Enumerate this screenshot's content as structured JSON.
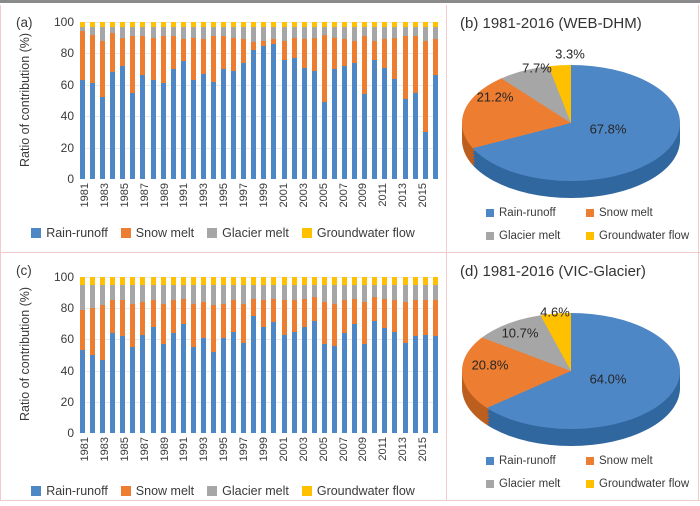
{
  "figure": {
    "ylabel": "Ratio of contribution (%)"
  },
  "palette": {
    "rain_runoff": "#4e87c6",
    "snow_melt": "#ED7D31",
    "glacier_melt": "#A6A6A6",
    "groundwater_flow": "#FFC000",
    "rain_runoff_dark": "#31679f",
    "snow_melt_dark": "#bc5e1e",
    "glacier_melt_dark": "#828282",
    "groundwater_flow_dark": "#c49200"
  },
  "chart_data": [
    {
      "id": "a",
      "type": "bar",
      "stacked": true,
      "panel_label": "(a)",
      "ylabel": "Ratio of contribution (%)",
      "ylim": [
        0,
        100
      ],
      "yticks": [
        0,
        20,
        40,
        60,
        80,
        100
      ],
      "grid": true,
      "legend_position": "bottom",
      "categories": [
        1981,
        1982,
        1983,
        1984,
        1985,
        1986,
        1987,
        1988,
        1989,
        1990,
        1991,
        1992,
        1993,
        1994,
        1995,
        1996,
        1997,
        1998,
        1999,
        2000,
        2001,
        2002,
        2003,
        2004,
        2005,
        2006,
        2007,
        2008,
        2009,
        2010,
        2011,
        2012,
        2013,
        2014,
        2015,
        2016
      ],
      "xtick_labels": [
        "1981",
        "1983",
        "1985",
        "1987",
        "1989",
        "1991",
        "1993",
        "1995",
        "1997",
        "1999",
        "2001",
        "2003",
        "2005",
        "2007",
        "2009",
        "2011",
        "2013",
        "2015"
      ],
      "series": [
        {
          "name": "Rain-runoff",
          "color": "#4e87c6",
          "values": [
            63,
            61,
            52,
            68,
            72,
            55,
            66,
            63,
            61,
            70,
            75,
            63,
            67,
            62,
            70,
            69,
            74,
            82,
            85,
            86,
            76,
            77,
            71,
            69,
            49,
            70,
            72,
            74,
            54,
            76,
            71,
            64,
            51,
            55,
            30,
            66
          ]
        },
        {
          "name": "Snow melt",
          "color": "#ED7D31",
          "values": [
            31,
            31,
            36,
            25,
            18,
            36,
            25,
            27,
            30,
            21,
            14,
            27,
            22,
            29,
            21,
            21,
            15,
            5,
            3,
            3,
            12,
            13,
            18,
            21,
            43,
            20,
            17,
            14,
            37,
            12,
            18,
            26,
            40,
            36,
            58,
            23
          ]
        },
        {
          "name": "Glacier melt",
          "color": "#A6A6A6",
          "values": [
            3,
            5,
            9,
            4,
            7,
            6,
            6,
            7,
            6,
            6,
            8,
            7,
            8,
            6,
            6,
            7,
            8,
            10,
            9,
            8,
            9,
            7,
            8,
            7,
            5,
            7,
            8,
            9,
            6,
            9,
            8,
            7,
            6,
            6,
            9,
            8
          ]
        },
        {
          "name": "Groundwater flow",
          "color": "#FFC000",
          "values": [
            3,
            3,
            3,
            3,
            3,
            3,
            3,
            3,
            3,
            3,
            3,
            3,
            3,
            3,
            3,
            3,
            3,
            3,
            3,
            3,
            3,
            3,
            3,
            3,
            3,
            3,
            3,
            3,
            3,
            3,
            3,
            3,
            3,
            3,
            3,
            3
          ]
        }
      ]
    },
    {
      "id": "b",
      "type": "pie",
      "title": "(b) 1981-2016 (WEB-DHM)",
      "legend_position": "bottom",
      "slices": [
        {
          "name": "Rain-runoff",
          "value": 67.8,
          "label": "67.8%",
          "color": "#4e87c6",
          "dark": "#31679f"
        },
        {
          "name": "Snow melt",
          "value": 21.2,
          "label": "21.2%",
          "color": "#ED7D31",
          "dark": "#bc5e1e"
        },
        {
          "name": "Glacier melt",
          "value": 7.7,
          "label": "7.7%",
          "color": "#A6A6A6",
          "dark": "#828282"
        },
        {
          "name": "Groundwater flow",
          "value": 3.3,
          "label": "3.3%",
          "color": "#FFC000",
          "dark": "#c49200"
        }
      ]
    },
    {
      "id": "c",
      "type": "bar",
      "stacked": true,
      "panel_label": "(c)",
      "ylabel": "Ratio of contribution (%)",
      "ylim": [
        0,
        100
      ],
      "yticks": [
        0,
        20,
        40,
        60,
        80,
        100
      ],
      "grid": true,
      "legend_position": "bottom",
      "categories": [
        1981,
        1982,
        1983,
        1984,
        1985,
        1986,
        1987,
        1988,
        1989,
        1990,
        1991,
        1992,
        1993,
        1994,
        1995,
        1996,
        1997,
        1998,
        1999,
        2000,
        2001,
        2002,
        2003,
        2004,
        2005,
        2006,
        2007,
        2008,
        2009,
        2010,
        2011,
        2012,
        2013,
        2014,
        2015,
        2016
      ],
      "xtick_labels": [
        "1981",
        "1983",
        "1985",
        "1987",
        "1989",
        "1991",
        "1993",
        "1995",
        "1997",
        "1999",
        "2001",
        "2003",
        "2005",
        "2007",
        "2009",
        "2011",
        "2013",
        "2015"
      ],
      "series": [
        {
          "name": "Rain-runoff",
          "color": "#4e87c6",
          "values": [
            53,
            50,
            47,
            64,
            62,
            55,
            63,
            68,
            57,
            64,
            70,
            55,
            61,
            52,
            61,
            65,
            58,
            75,
            68,
            71,
            63,
            65,
            68,
            72,
            57,
            56,
            64,
            70,
            57,
            72,
            67,
            65,
            58,
            62,
            63,
            62
          ]
        },
        {
          "name": "Snow melt",
          "color": "#ED7D31",
          "values": [
            26,
            30,
            35,
            21,
            23,
            28,
            21,
            17,
            26,
            21,
            16,
            28,
            23,
            30,
            22,
            20,
            25,
            11,
            17,
            15,
            22,
            20,
            18,
            15,
            27,
            27,
            21,
            16,
            27,
            15,
            19,
            20,
            26,
            23,
            22,
            23
          ]
        },
        {
          "name": "Glacier melt",
          "color": "#A6A6A6",
          "values": [
            16,
            15,
            13,
            10,
            10,
            12,
            11,
            10,
            12,
            10,
            9,
            12,
            11,
            13,
            12,
            10,
            12,
            9,
            10,
            9,
            10,
            10,
            9,
            8,
            11,
            12,
            10,
            9,
            11,
            8,
            9,
            10,
            11,
            10,
            10,
            10
          ]
        },
        {
          "name": "Groundwater flow",
          "color": "#FFC000",
          "values": [
            5,
            5,
            5,
            5,
            5,
            5,
            5,
            5,
            5,
            5,
            5,
            5,
            5,
            5,
            5,
            5,
            5,
            5,
            5,
            5,
            5,
            5,
            5,
            5,
            5,
            5,
            5,
            5,
            5,
            5,
            5,
            5,
            5,
            5,
            5,
            5
          ]
        }
      ]
    },
    {
      "id": "d",
      "type": "pie",
      "title": "(d) 1981-2016 (VIC-Glacier)",
      "legend_position": "bottom",
      "slices": [
        {
          "name": "Rain-runoff",
          "value": 64.0,
          "label": "64.0%",
          "color": "#4e87c6",
          "dark": "#31679f"
        },
        {
          "name": "Snow melt",
          "value": 20.8,
          "label": "20.8%",
          "color": "#ED7D31",
          "dark": "#bc5e1e"
        },
        {
          "name": "Glacier melt",
          "value": 10.7,
          "label": "10.7%",
          "color": "#A6A6A6",
          "dark": "#828282"
        },
        {
          "name": "Groundwater flow",
          "value": 4.6,
          "label": "4.6%",
          "color": "#FFC000",
          "dark": "#c49200"
        }
      ]
    }
  ]
}
